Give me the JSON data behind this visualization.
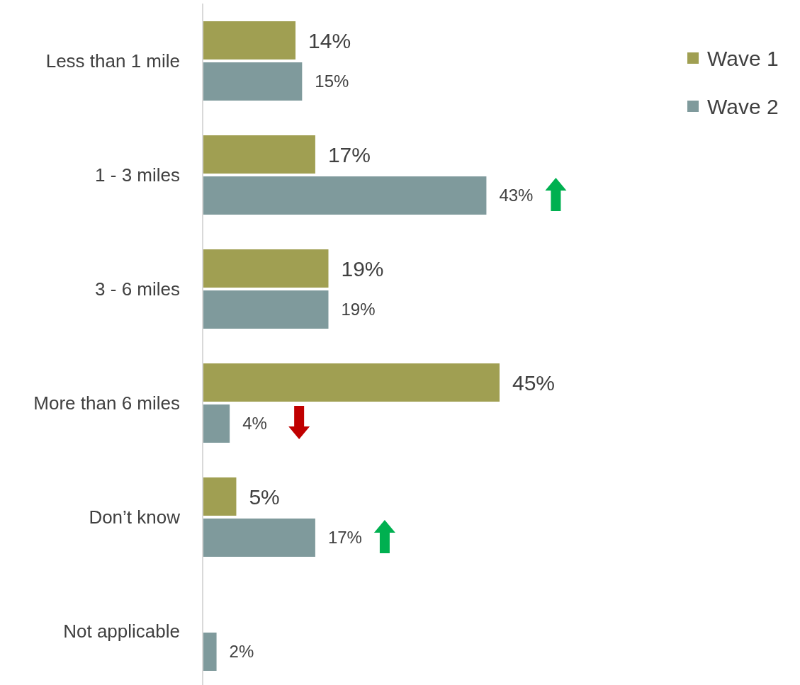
{
  "chart_data": {
    "type": "bar",
    "orientation": "horizontal",
    "categories": [
      "Less than 1 mile",
      "1 - 3 miles",
      "3 - 6 miles",
      "More than 6 miles",
      "Don’t know",
      "Not applicable"
    ],
    "series": [
      {
        "name": "Wave 1",
        "color": "#a09f52",
        "values": [
          14,
          17,
          19,
          45,
          5,
          null
        ],
        "value_labels": [
          "14%",
          "17%",
          "19%",
          "45%",
          "5%",
          null
        ]
      },
      {
        "name": "Wave 2",
        "color": "#7f9a9c",
        "values": [
          15,
          43,
          19,
          4,
          17,
          2
        ],
        "value_labels": [
          "15%",
          "43%",
          "19%",
          "4%",
          "17%",
          "2%"
        ]
      }
    ],
    "legend": "top right"
  }
}
